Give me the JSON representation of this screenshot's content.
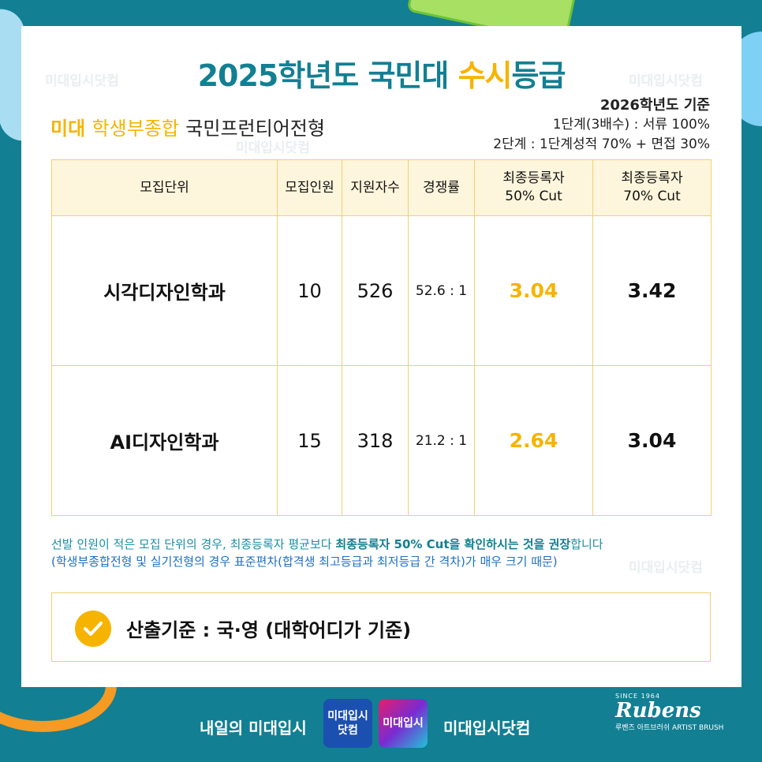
{
  "title": {
    "part1": "2025학년도 국민대 ",
    "highlight": "수시",
    "part2": "등급"
  },
  "watermark": "미대입시닷컴",
  "subtitle": {
    "brand": "미대",
    "type": "학생부종합",
    "track": "국민프런티어전형"
  },
  "criteria": {
    "head": "2026학년도 기준",
    "stage1": "1단계(3배수) : 서류 100%",
    "stage2": "2단계 : 1단계성적 70% + 면접 30%"
  },
  "table": {
    "headers": {
      "dept": "모집단위",
      "quota": "모집인원",
      "applicants": "지원자수",
      "ratio": "경쟁률",
      "cut50_line1": "최종등록자",
      "cut50_line2": "50% Cut",
      "cut70_line1": "최종등록자",
      "cut70_line2": "70% Cut"
    },
    "rows": [
      {
        "dept": "시각디자인학과",
        "quota": "10",
        "applicants": "526",
        "ratio": "52.6 : 1",
        "cut50": "3.04",
        "cut70": "3.42"
      },
      {
        "dept": "AI디자인학과",
        "quota": "15",
        "applicants": "318",
        "ratio": "21.2 : 1",
        "cut50": "2.64",
        "cut70": "3.04"
      }
    ]
  },
  "note": {
    "line1_pre": "선발 인원이 적은 모집 단위의 경우, 최종등록자 평균보다 ",
    "line1_bold": "최종등록자 50% Cut을 확인하시는 것을 권장",
    "line1_post": "합니다",
    "line2": "(학생부종합전형 및 실기전형의 경우 표준편차(합격생 최고등급과 최저등급 간 격차)가 매우 크기 때문)"
  },
  "calc": {
    "text": "산출기준 : 국·영 (대학어디가 기준)",
    "icon": "check-icon"
  },
  "footer": {
    "slogan": "내일의 미대입시",
    "logo1": "미대입시 닷컴",
    "logo2": "미대입시",
    "site": "미대입시닷컴",
    "rubens_since": "SINCE 1964",
    "rubens_brand": "Rubens",
    "rubens_sub": "루벤즈 아트브러쉬   ARTIST BRUSH"
  },
  "colors": {
    "teal": "#127f93",
    "accent": "#f6b400",
    "header_bg": "#fef6dc"
  }
}
